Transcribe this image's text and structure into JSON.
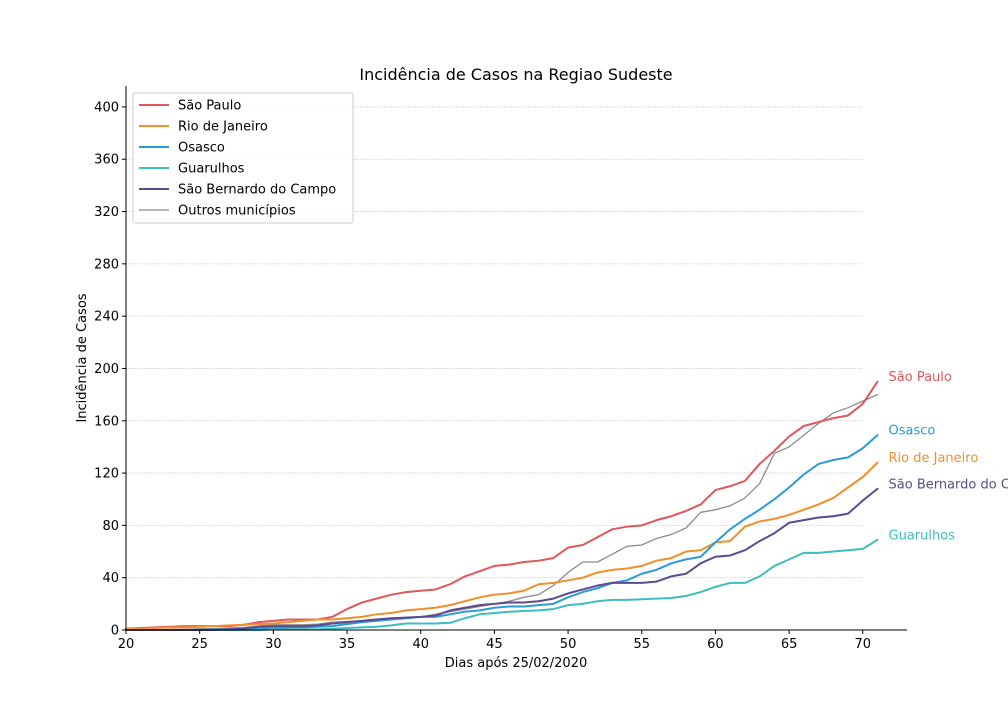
{
  "chart_data": {
    "type": "line",
    "title": "Incidência de Casos na Regiao Sudeste",
    "xlabel": "Dias após 25/02/2020",
    "ylabel": "Incidência de Casos",
    "xlim": [
      20,
      73
    ],
    "ylim": [
      0,
      416
    ],
    "xticks": [
      20,
      25,
      30,
      35,
      40,
      45,
      50,
      55,
      60,
      65,
      70
    ],
    "yticks": [
      0,
      40,
      80,
      120,
      160,
      200,
      240,
      280,
      320,
      360,
      400
    ],
    "grid": "horizontal dotted",
    "legend_position": "top-left",
    "x": [
      20,
      21,
      22,
      23,
      24,
      25,
      26,
      27,
      28,
      29,
      30,
      31,
      32,
      33,
      34,
      35,
      36,
      37,
      38,
      39,
      40,
      41,
      42,
      43,
      44,
      45,
      46,
      47,
      48,
      49,
      50,
      51,
      52,
      53,
      54,
      55,
      56,
      57,
      58,
      59,
      60,
      61,
      62,
      63,
      64,
      65,
      66,
      67,
      68,
      69,
      70,
      71
    ],
    "series": [
      {
        "name": "São Paulo",
        "color": "#e15759",
        "width": 2,
        "end_label": true,
        "values": [
          1,
          1.5,
          2,
          2.5,
          3,
          3,
          3,
          3,
          4,
          6,
          7,
          8,
          8,
          8,
          10,
          16,
          21,
          24,
          27,
          29,
          30,
          31,
          35,
          41,
          45,
          49,
          50,
          52,
          53,
          55,
          63,
          65,
          71,
          77,
          79,
          80,
          84,
          87,
          91,
          96,
          107,
          110,
          114,
          127,
          137,
          148,
          156,
          159,
          162,
          164,
          173,
          190
        ]
      },
      {
        "name": "Rio de Janeiro",
        "color": "#f28e2b",
        "width": 2,
        "end_label": true,
        "values": [
          1,
          1,
          1.5,
          2,
          2,
          2.5,
          3,
          3.5,
          4,
          4.5,
          5,
          6,
          7,
          8,
          8,
          9,
          10,
          12,
          13,
          15,
          16,
          17,
          19,
          22,
          25,
          27,
          28,
          30,
          35,
          36,
          38,
          40,
          44,
          46,
          47,
          49,
          53,
          55,
          60,
          61,
          67,
          68,
          79,
          83,
          85,
          88,
          92,
          96,
          101,
          109,
          117,
          128
        ]
      },
      {
        "name": "Osasco",
        "color": "#2b9bd8",
        "width": 2,
        "end_label": true,
        "values": [
          0,
          0,
          0,
          0,
          0,
          0,
          0.5,
          0.5,
          1,
          1,
          1.5,
          2,
          2,
          2.5,
          3,
          4.5,
          6,
          7,
          8,
          9,
          10,
          10,
          12,
          14,
          15,
          17,
          18,
          18,
          19,
          20,
          25,
          29,
          32,
          36,
          38,
          43,
          46,
          51,
          54,
          56,
          67,
          77,
          85,
          92,
          100,
          109,
          119,
          127,
          130,
          132,
          139,
          149
        ]
      },
      {
        "name": "Guarulhos",
        "color": "#3dbdbd",
        "width": 2,
        "end_label": true,
        "values": [
          0,
          0,
          0,
          0,
          0,
          0,
          0,
          0,
          0,
          0,
          0.5,
          0.5,
          0.5,
          0.5,
          1,
          1.5,
          2,
          2.5,
          3.5,
          5,
          5,
          5,
          5.5,
          9,
          12,
          13,
          14,
          14.5,
          15,
          16,
          19,
          20,
          22,
          23,
          23,
          23.5,
          24,
          24.5,
          26,
          29,
          33,
          36,
          36,
          41,
          49,
          54,
          59,
          59,
          60,
          61,
          62,
          69
        ]
      },
      {
        "name": "São Bernardo do Campo",
        "color": "#5c4a8f",
        "width": 2,
        "end_label": true,
        "values": [
          0,
          0,
          0,
          0,
          0,
          0,
          0,
          0.5,
          1,
          2.5,
          3,
          3,
          3,
          3.5,
          5,
          6,
          7,
          8,
          9,
          9.5,
          10,
          11,
          15,
          17,
          19,
          20,
          21,
          21,
          22,
          24,
          28,
          31,
          34,
          36,
          36,
          36,
          37,
          41,
          43,
          51,
          56,
          57,
          61,
          68,
          74,
          82,
          84,
          86,
          87,
          89,
          99,
          108
        ]
      },
      {
        "name": "Outros municípios",
        "color": "#8c8c8c",
        "width": 1.3,
        "end_label": false,
        "values": [
          0,
          0,
          0,
          0.5,
          0.5,
          1,
          1,
          1.5,
          2,
          3,
          4,
          4,
          4,
          4.5,
          6,
          6.5,
          7,
          7.5,
          8,
          9,
          10,
          12,
          14,
          16,
          18,
          20,
          22,
          25,
          27,
          34,
          44,
          52,
          52,
          58,
          64,
          65,
          70,
          73,
          78,
          90,
          92,
          95,
          101,
          112,
          135,
          140,
          149,
          158,
          166,
          170,
          175,
          180
        ]
      }
    ]
  }
}
